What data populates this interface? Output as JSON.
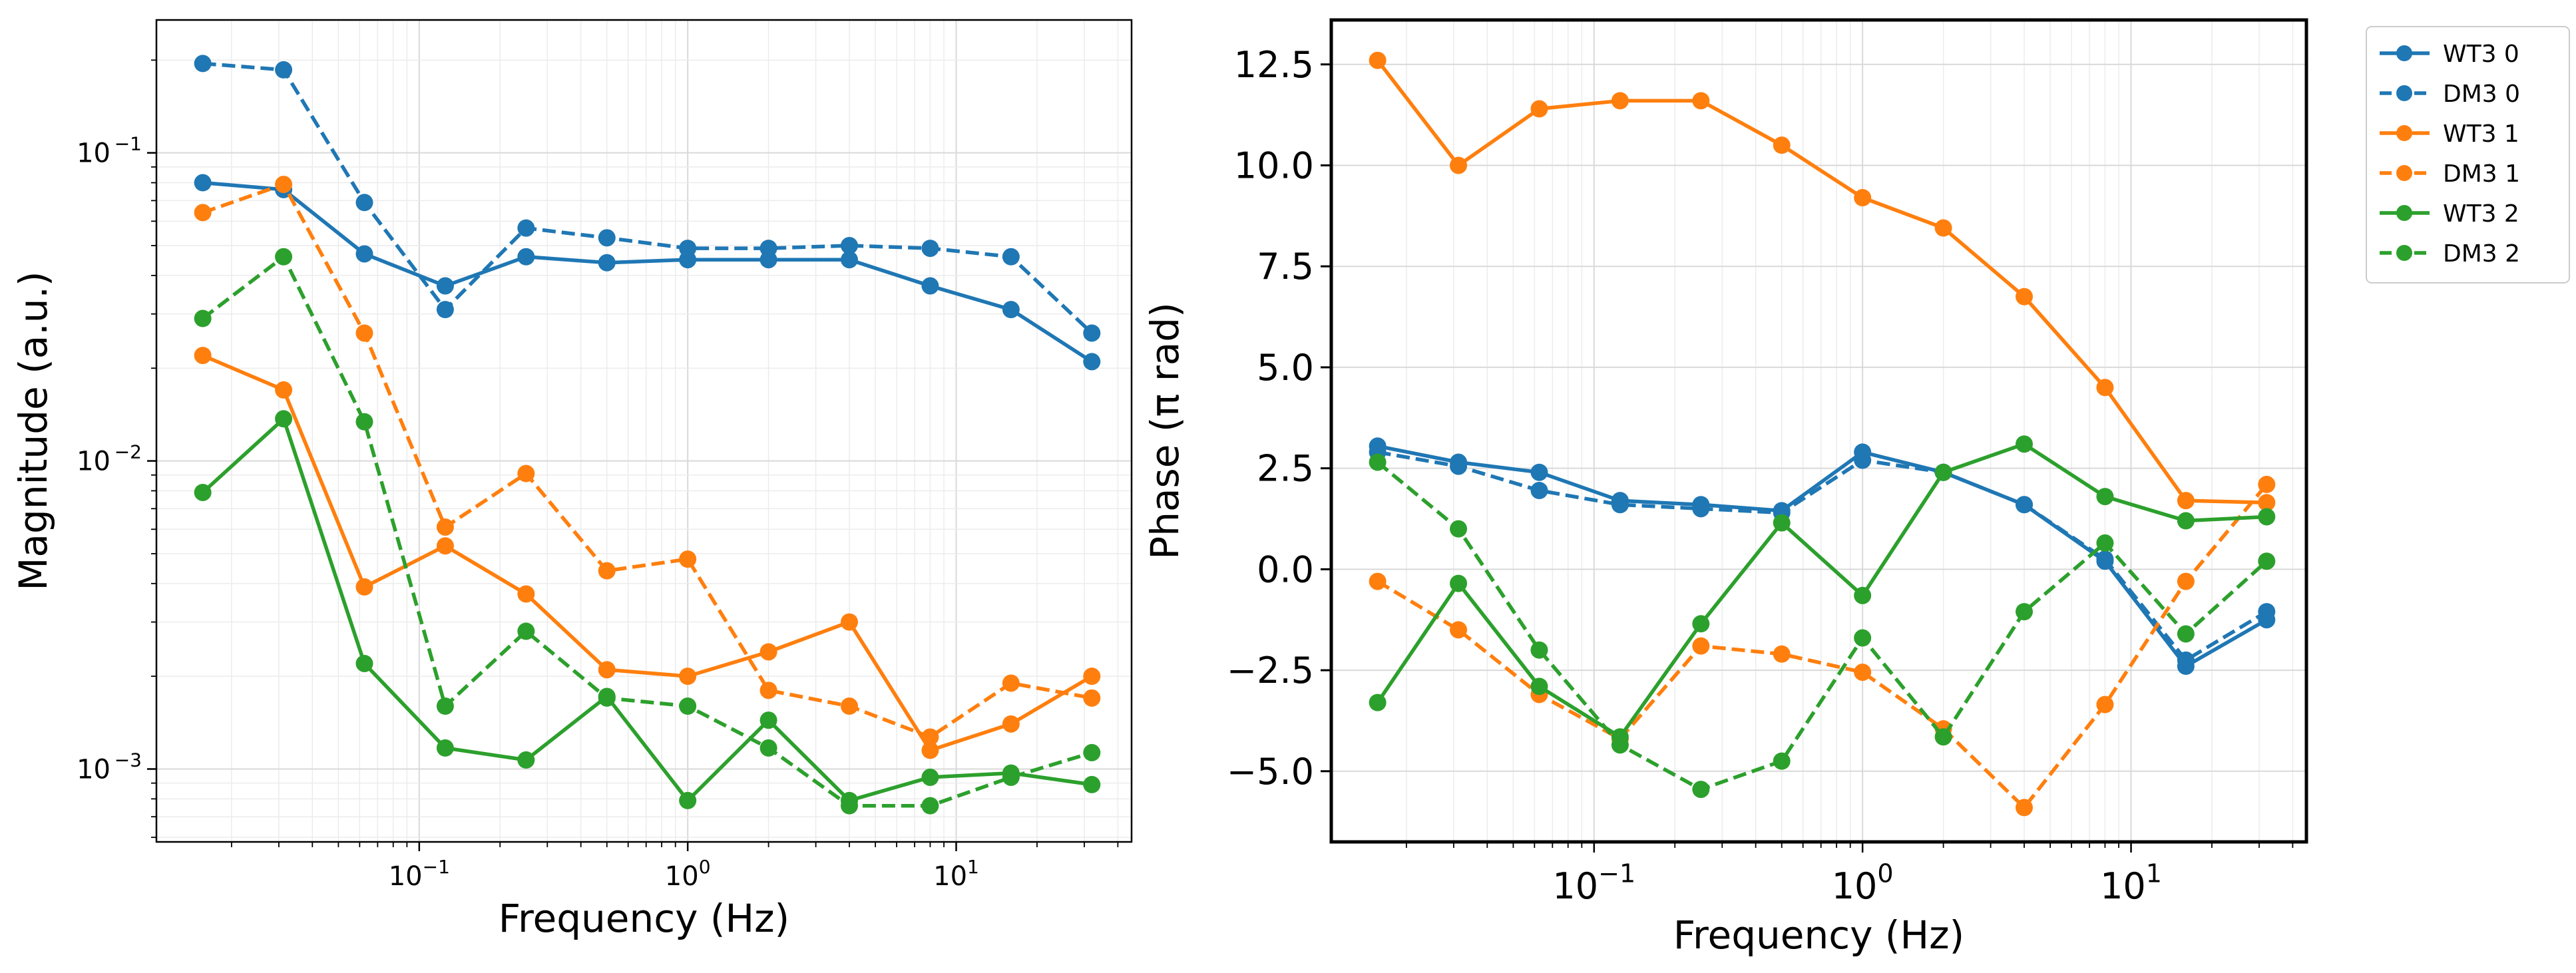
{
  "chart_data": [
    {
      "type": "line",
      "xlabel": "Frequency (Hz)",
      "ylabel": "Magnitude (a.u.)",
      "xscale": "log",
      "yscale": "log",
      "xlim": [
        0.0105,
        45
      ],
      "ylim": [
        0.00058,
        0.27
      ],
      "grid": true,
      "x": [
        0.015625,
        0.03125,
        0.0625,
        0.125,
        0.25,
        0.5,
        1,
        2,
        4,
        8,
        16,
        32
      ],
      "x_ticks": [
        {
          "v": 0.1,
          "b": "10",
          "e": "−1"
        },
        {
          "v": 1,
          "b": "10",
          "e": "0"
        },
        {
          "v": 10,
          "b": "10",
          "e": "1"
        }
      ],
      "y_ticks": [
        {
          "v": 0.001,
          "b": "10",
          "e": "−3"
        },
        {
          "v": 0.01,
          "b": "10",
          "e": "−2"
        },
        {
          "v": 0.1,
          "b": "10",
          "e": "−1"
        }
      ],
      "series": [
        {
          "name": "WT3 0",
          "color": "#1f77b4",
          "dash": false,
          "values": [
            0.08,
            0.076,
            0.047,
            0.037,
            0.046,
            0.044,
            0.045,
            0.045,
            0.045,
            0.037,
            0.031,
            0.021
          ]
        },
        {
          "name": "DM3 0",
          "color": "#1f77b4",
          "dash": true,
          "values": [
            0.195,
            0.186,
            0.069,
            0.031,
            0.057,
            0.053,
            0.049,
            0.049,
            0.05,
            0.049,
            0.046,
            0.026
          ]
        },
        {
          "name": "WT3 1",
          "color": "#ff7f0e",
          "dash": false,
          "values": [
            0.022,
            0.017,
            0.0039,
            0.0053,
            0.0037,
            0.0021,
            0.002,
            0.0024,
            0.003,
            0.00115,
            0.0014,
            0.002
          ]
        },
        {
          "name": "DM3 1",
          "color": "#ff7f0e",
          "dash": true,
          "values": [
            0.064,
            0.079,
            0.026,
            0.0061,
            0.0091,
            0.0044,
            0.0048,
            0.0018,
            0.0016,
            0.00127,
            0.0019,
            0.0017
          ]
        },
        {
          "name": "WT3 2",
          "color": "#2ca02c",
          "dash": false,
          "values": [
            0.0079,
            0.0137,
            0.0022,
            0.00117,
            0.00107,
            0.00172,
            0.00079,
            0.00144,
            0.00079,
            0.00094,
            0.00097,
            0.00089
          ]
        },
        {
          "name": "DM3 2",
          "color": "#2ca02c",
          "dash": true,
          "values": [
            0.029,
            0.046,
            0.0134,
            0.0016,
            0.0028,
            0.0017,
            0.0016,
            0.00117,
            0.00076,
            0.00076,
            0.00094,
            0.00113
          ]
        }
      ]
    },
    {
      "type": "line",
      "xlabel": "Frequency (Hz)",
      "ylabel": "Phase (π rad)",
      "xscale": "log",
      "yscale": "linear",
      "xlim": [
        0.0105,
        45
      ],
      "ylim": [
        -6.75,
        13.6
      ],
      "grid": true,
      "legend_position": "outside-top-right",
      "x": [
        0.015625,
        0.03125,
        0.0625,
        0.125,
        0.25,
        0.5,
        1,
        2,
        4,
        8,
        16,
        32
      ],
      "x_ticks": [
        {
          "v": 0.1,
          "b": "10",
          "e": "−1"
        },
        {
          "v": 1,
          "b": "10",
          "e": "0"
        },
        {
          "v": 10,
          "b": "10",
          "e": "1"
        }
      ],
      "y_ticks": [
        {
          "v": -5,
          "label": "−5.0"
        },
        {
          "v": -2.5,
          "label": "−2.5"
        },
        {
          "v": 0,
          "label": "0.0"
        },
        {
          "v": 2.5,
          "label": "2.5"
        },
        {
          "v": 5,
          "label": "5.0"
        },
        {
          "v": 7.5,
          "label": "7.5"
        },
        {
          "v": 10,
          "label": "10.0"
        },
        {
          "v": 12.5,
          "label": "12.5"
        }
      ],
      "series": [
        {
          "name": "WT3 0",
          "color": "#1f77b4",
          "dash": false,
          "values": [
            3.05,
            2.65,
            2.4,
            1.7,
            1.6,
            1.45,
            2.9,
            2.4,
            1.6,
            0.2,
            -2.4,
            -1.25
          ]
        },
        {
          "name": "DM3 0",
          "color": "#1f77b4",
          "dash": true,
          "values": [
            2.9,
            2.55,
            1.95,
            1.6,
            1.5,
            1.4,
            2.7,
            2.4,
            1.6,
            0.25,
            -2.25,
            -1.05
          ]
        },
        {
          "name": "WT3 1",
          "color": "#ff7f0e",
          "dash": false,
          "values": [
            12.6,
            10.0,
            11.4,
            11.6,
            11.6,
            10.5,
            9.2,
            8.45,
            6.75,
            4.5,
            1.7,
            1.65
          ]
        },
        {
          "name": "DM3 1",
          "color": "#ff7f0e",
          "dash": true,
          "values": [
            -0.3,
            -1.5,
            -3.1,
            -4.2,
            -1.9,
            -2.1,
            -2.55,
            -3.95,
            -5.9,
            -3.35,
            -0.3,
            2.1
          ]
        },
        {
          "name": "WT3 2",
          "color": "#2ca02c",
          "dash": false,
          "values": [
            -3.3,
            -0.35,
            -2.9,
            -4.15,
            -1.35,
            1.15,
            -0.65,
            2.4,
            3.1,
            1.8,
            1.2,
            1.3
          ]
        },
        {
          "name": "DM3 2",
          "color": "#2ca02c",
          "dash": true,
          "values": [
            2.65,
            1.0,
            -2.0,
            -4.35,
            -5.45,
            -4.75,
            -1.7,
            -4.15,
            -1.05,
            0.65,
            -1.6,
            0.2
          ]
        }
      ]
    }
  ]
}
